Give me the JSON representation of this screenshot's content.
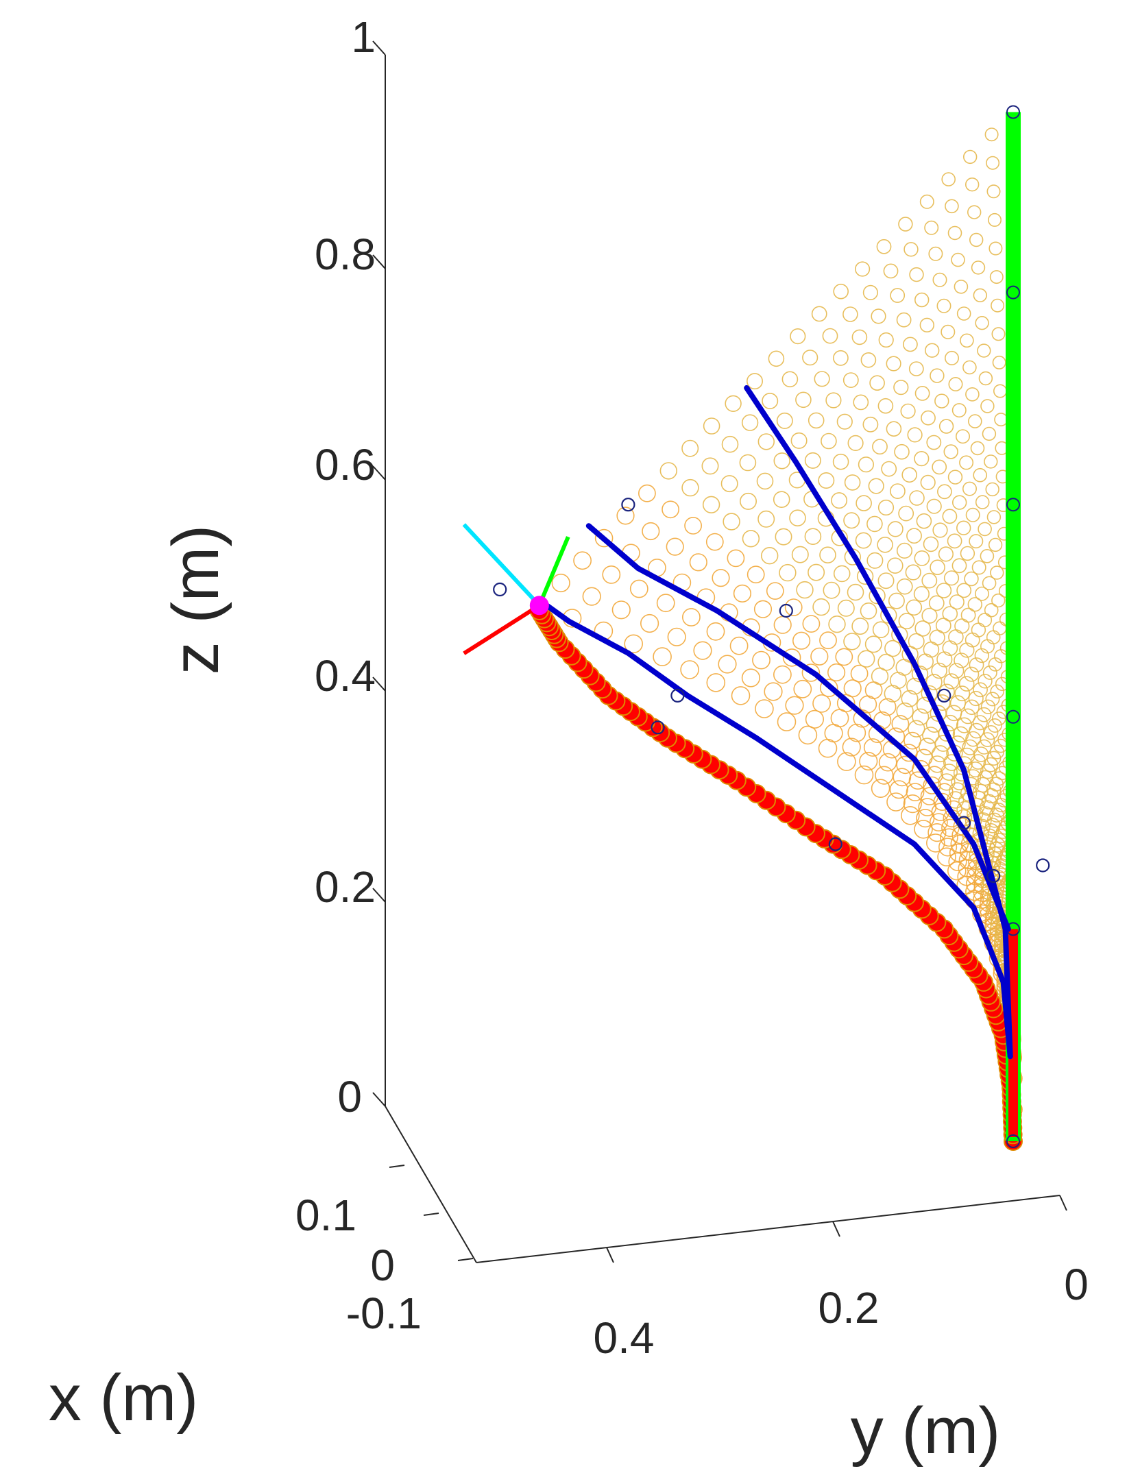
{
  "chart_data": {
    "type": "scatter3d",
    "title": "",
    "xlabel": "x (m)",
    "ylabel": "y (m)",
    "zlabel": "z (m)",
    "x_ticks": [
      "0.1",
      "0",
      "-0.1"
    ],
    "y_ticks": [
      "0.4",
      "0.2",
      "0"
    ],
    "z_ticks": [
      "1",
      "0.8",
      "0.6",
      "0.4",
      "0.2",
      "0"
    ],
    "zlim": [
      0,
      1
    ],
    "colors": {
      "axes": "#262626",
      "workspace_markers": "#e6b84c",
      "dense_markers": "#f2a93b",
      "boundary_curve": "#ff0000",
      "initial_pose": "#00ff00",
      "trajectory": "#0000cc",
      "sample_points": "#1a237e",
      "frame_x": "#ff0000",
      "frame_y": "#00ff00",
      "frame_z": "#00e5ff",
      "tip": "#ff00ff"
    },
    "series": [
      {
        "role": "initial_pose",
        "points_yz": [
          [
            0,
            0
          ],
          [
            0,
            0.97
          ]
        ]
      },
      {
        "role": "boundary_curve",
        "points_yz": [
          [
            0,
            0
          ],
          [
            0.002,
            0.05
          ],
          [
            0.01,
            0.1
          ],
          [
            0.03,
            0.15
          ],
          [
            0.07,
            0.2
          ],
          [
            0.13,
            0.25
          ],
          [
            0.2,
            0.29
          ],
          [
            0.28,
            0.34
          ],
          [
            0.35,
            0.38
          ],
          [
            0.41,
            0.42
          ],
          [
            0.46,
            0.47
          ],
          [
            0.48,
            0.5
          ]
        ]
      },
      {
        "role": "trajectory",
        "points_yz": [
          [
            0.005,
            0.2
          ],
          [
            0.04,
            0.28
          ],
          [
            0.1,
            0.36
          ],
          [
            0.2,
            0.44
          ],
          [
            0.3,
            0.5
          ],
          [
            0.38,
            0.54
          ],
          [
            0.43,
            0.58
          ]
        ]
      },
      {
        "role": "trajectory",
        "points_yz": [
          [
            0.003,
            0.08
          ],
          [
            0.008,
            0.2
          ],
          [
            0.05,
            0.35
          ],
          [
            0.1,
            0.45
          ],
          [
            0.16,
            0.55
          ],
          [
            0.22,
            0.64
          ],
          [
            0.27,
            0.71
          ]
        ]
      },
      {
        "role": "trajectory",
        "points_yz": [
          [
            0.003,
            0.08
          ],
          [
            0.01,
            0.15
          ],
          [
            0.04,
            0.22
          ],
          [
            0.1,
            0.28
          ],
          [
            0.18,
            0.33
          ],
          [
            0.26,
            0.38
          ],
          [
            0.33,
            0.42
          ],
          [
            0.39,
            0.46
          ],
          [
            0.45,
            0.49
          ],
          [
            0.48,
            0.51
          ]
        ]
      }
    ],
    "sample_points_yz": [
      [
        0.39,
        0.6
      ],
      [
        0.23,
        0.5
      ],
      [
        0.07,
        0.42
      ],
      [
        0.05,
        0.3
      ],
      [
        0.18,
        0.28
      ],
      [
        0.34,
        0.42
      ],
      [
        0.36,
        0.39
      ],
      [
        0.52,
        0.52
      ],
      [
        0.02,
        0.25
      ],
      [
        -0.03,
        0.26
      ]
    ]
  }
}
